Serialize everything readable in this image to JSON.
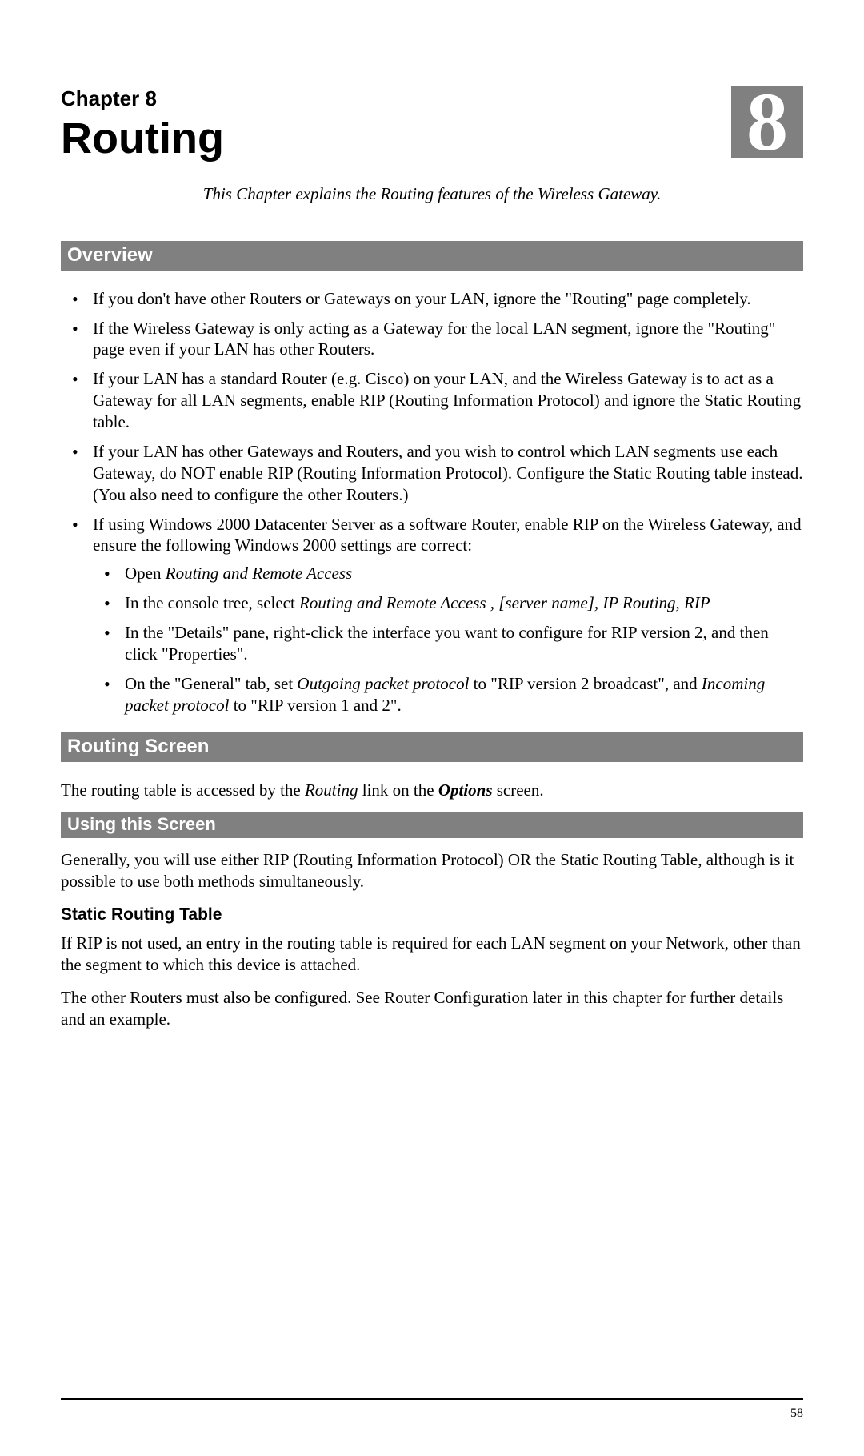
{
  "chapter": {
    "label": "Chapter 8",
    "title": "Routing",
    "badge_number": "8",
    "intro": "This Chapter explains the Routing features of the Wireless Gateway."
  },
  "colors": {
    "bar_bg": "#808080",
    "bar_text": "#ffffff",
    "body_text": "#000000",
    "page_bg": "#ffffff"
  },
  "typography": {
    "heading_family": "Arial",
    "body_family": "Times New Roman",
    "chapter_label_size_pt": 20,
    "chapter_title_size_pt": 40,
    "badge_number_size_pt": 78,
    "section_bar_size_pt": 18,
    "subsection_bar_size_pt": 16,
    "body_size_pt": 16,
    "h3_size_pt": 16
  },
  "sections": {
    "overview": {
      "title": "Overview",
      "bullets": [
        {
          "text": "If you don't have other Routers or Gateways on your LAN, ignore the \"Routing\" page completely."
        },
        {
          "text": "If the Wireless Gateway is only acting as a Gateway for the local LAN segment, ignore the \"Routing\" page even if your LAN has other Routers."
        },
        {
          "text": "If your LAN has a standard Router (e.g. Cisco) on your LAN, and the Wireless Gateway is to act as a Gateway for all LAN segments, enable RIP (Routing Information Protocol) and ignore the Static Routing table."
        },
        {
          "text": "If your LAN has other Gateways and Routers, and you wish to control which LAN segments use each Gateway, do NOT enable RIP (Routing Information Protocol). Configure the Static Routing table instead. (You also need to configure the other Routers.)"
        },
        {
          "text": "If using Windows 2000 Datacenter Server as a software Router, enable RIP on the Wireless Gateway, and ensure the following Windows 2000 settings are correct:",
          "sub": [
            {
              "pre": "Open ",
              "em": "Routing and Remote Access"
            },
            {
              "pre": "In the console tree, select ",
              "em": "Routing and Remote Access , [server name], IP Routing, RIP"
            },
            {
              "plain": "In the \"Details\" pane, right-click the interface you want to configure for RIP version 2, and then click \"Properties\"."
            },
            {
              "pre": "On the \"General\" tab, set ",
              "em": "Outgoing packet protocol",
              "mid": " to \"RIP version 2 broadcast\", and ",
              "em2": "Incoming packet protocol",
              "post": " to \"RIP version 1 and 2\"."
            }
          ]
        }
      ]
    },
    "routing_screen": {
      "title": "Routing Screen",
      "intro_pre": "The routing table is accessed by the ",
      "intro_em1": "Routing",
      "intro_mid": " link on the ",
      "intro_em2": "Options",
      "intro_post": " screen.",
      "using": {
        "title": "Using this Screen",
        "text": "Generally, you will use either RIP (Routing Information Protocol) OR the Static Routing Table, although is it possible to use both methods simultaneously."
      },
      "static_table": {
        "title": "Static Routing Table",
        "p1": "If RIP is not used, an entry in the routing table is required for each LAN segment on your Network, other than the segment to which this device is attached.",
        "p2": "The other Routers must also be configured. See Router Configuration later in this chapter for further details and an example."
      }
    }
  },
  "page_number": "58"
}
